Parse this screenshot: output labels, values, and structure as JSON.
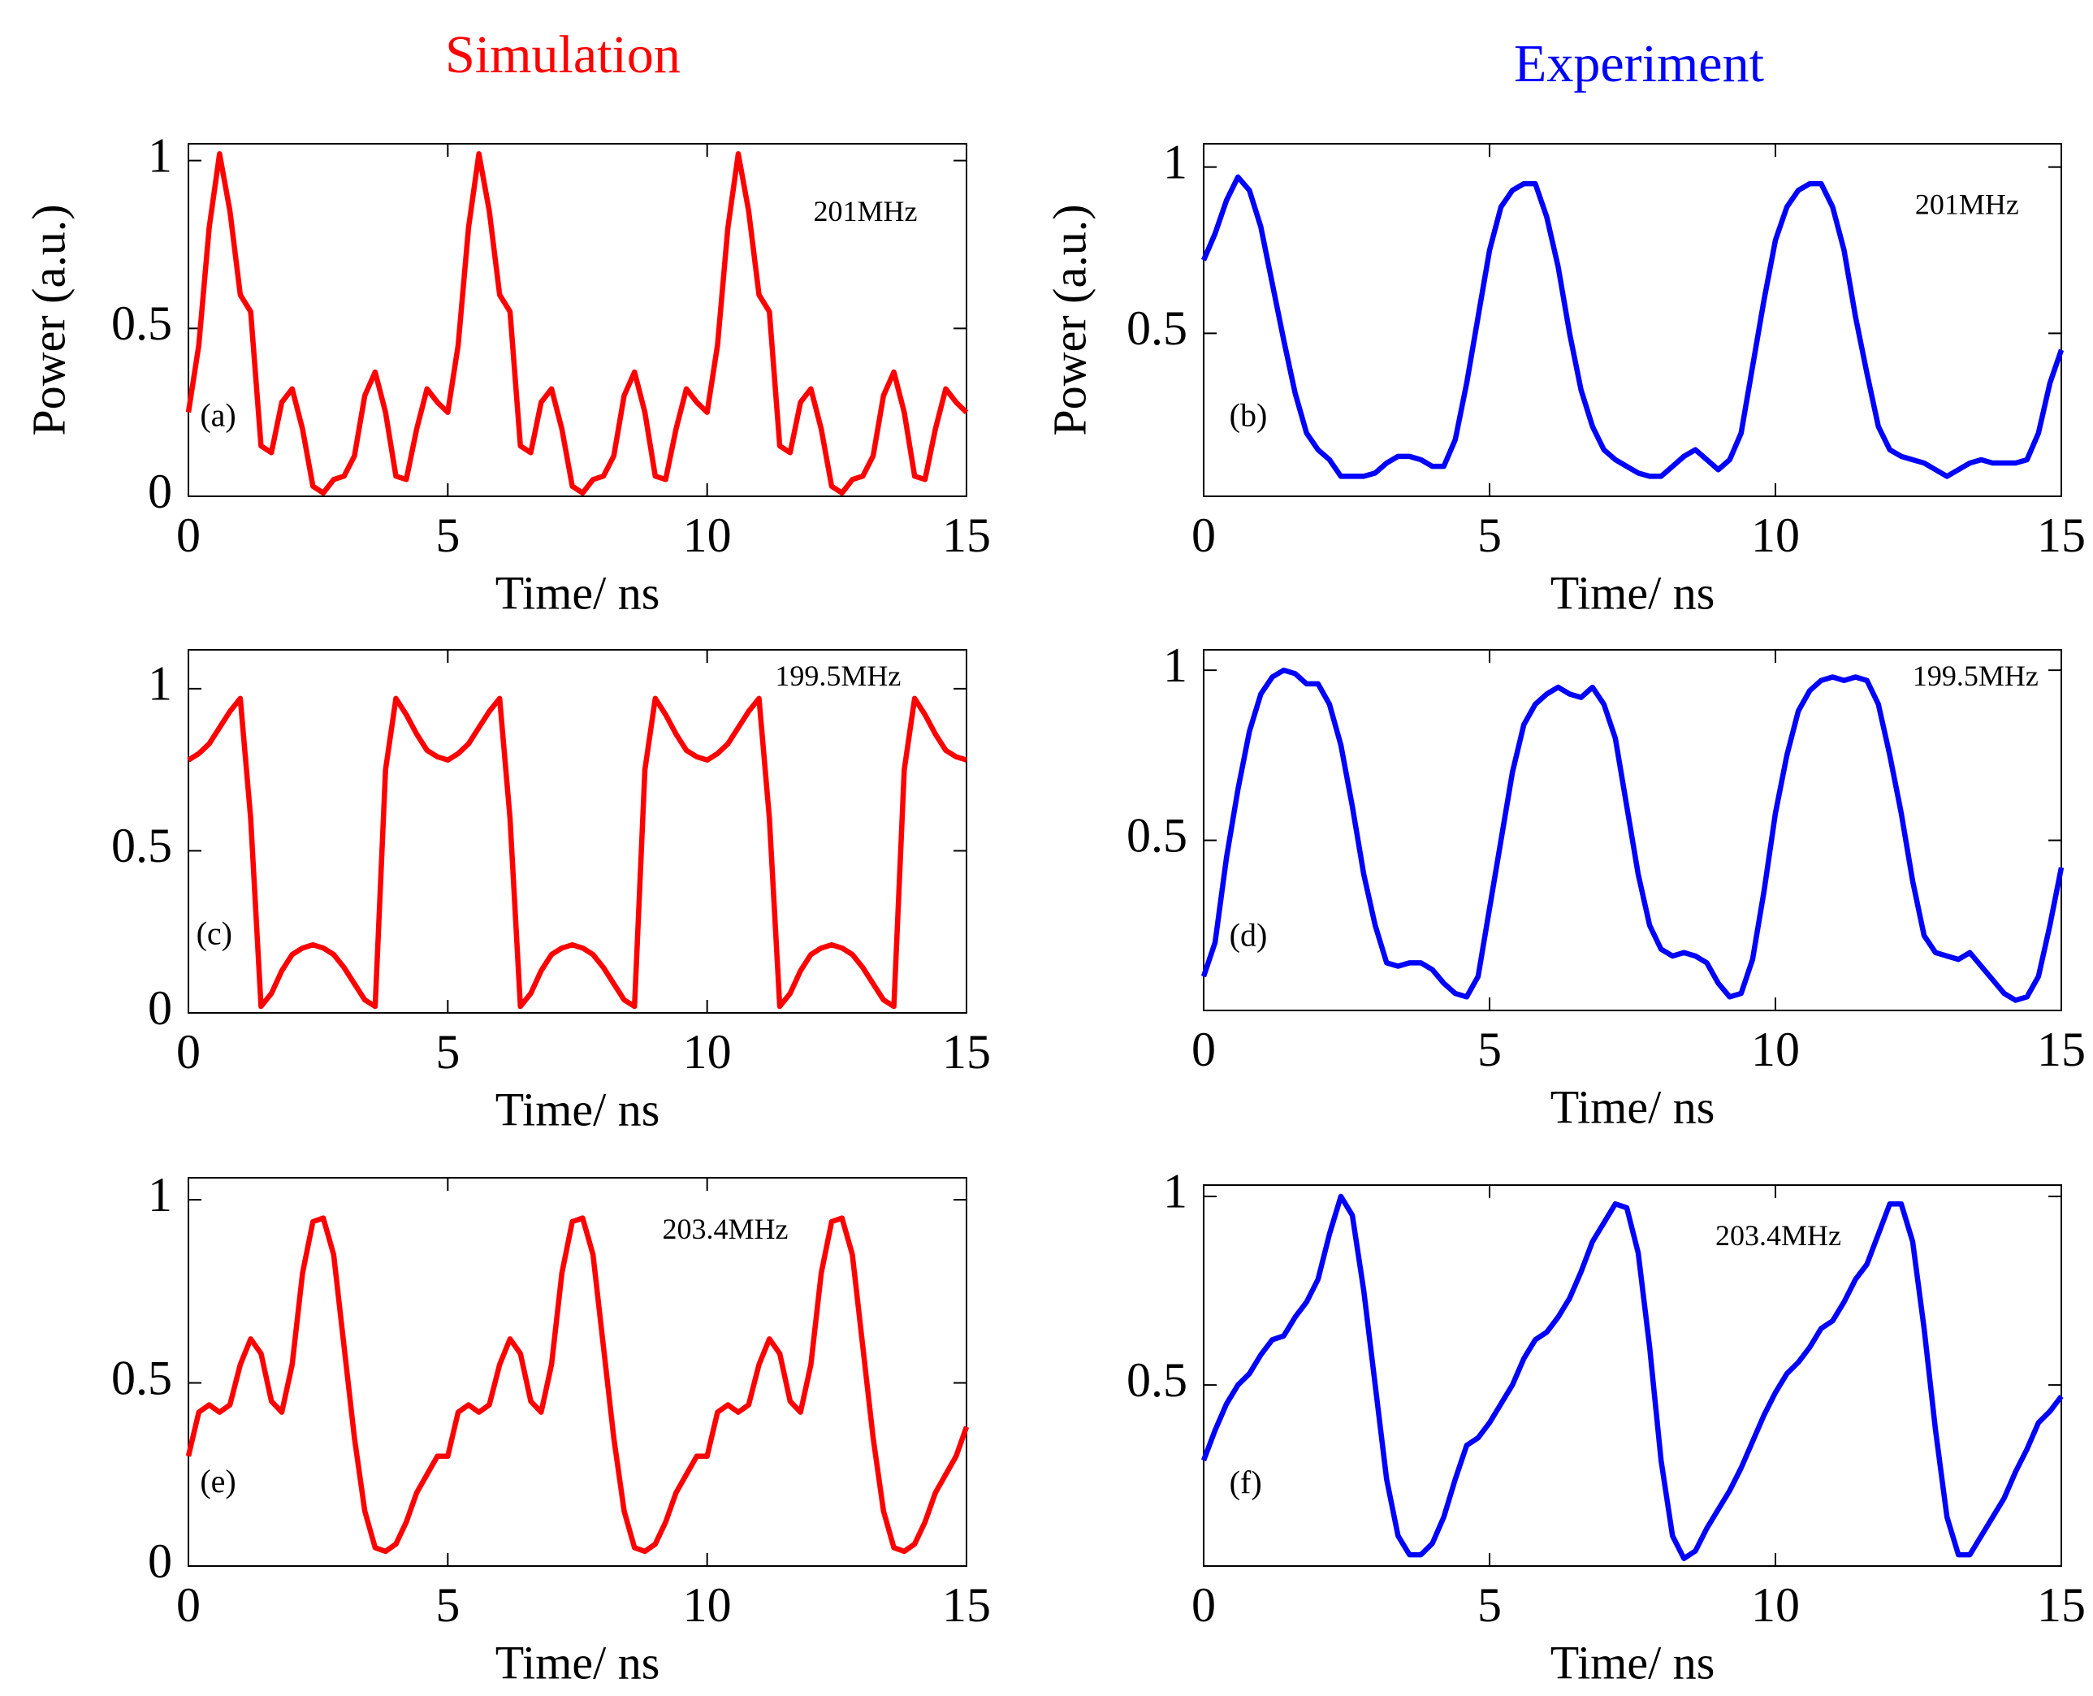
{
  "chart_data": [
    {
      "type": "line",
      "title": "Simulation",
      "xlabel": "Time/ ns",
      "ylabel": "Power (a.u.)",
      "annotations": [
        "(a)",
        "201MHz"
      ],
      "color": "#ff0000",
      "x": [
        0,
        0.2,
        0.4,
        0.6,
        0.8,
        1,
        1.2,
        1.4,
        1.6,
        1.8,
        2,
        2.2,
        2.4,
        2.6,
        2.8,
        3,
        3.2,
        3.4,
        3.6,
        3.8,
        4,
        4.2,
        4.4,
        4.6,
        4.8,
        5,
        5.2,
        5.4,
        5.6,
        5.8,
        6,
        6.2,
        6.4,
        6.6,
        6.8,
        7,
        7.2,
        7.4,
        7.6,
        7.8,
        8,
        8.2,
        8.4,
        8.6,
        8.8,
        9,
        9.2,
        9.4,
        9.6,
        9.8,
        10,
        10.2,
        10.4,
        10.6,
        10.8,
        11,
        11.2,
        11.4,
        11.6,
        11.8,
        12,
        12.2,
        12.4,
        12.6,
        12.8,
        13,
        13.2,
        13.4,
        13.6,
        13.8,
        14,
        14.2,
        14.4,
        14.6,
        14.8,
        15
      ],
      "values": [
        0.25,
        0.45,
        0.8,
        1.02,
        0.85,
        0.6,
        0.55,
        0.15,
        0.13,
        0.28,
        0.32,
        0.2,
        0.03,
        0.01,
        0.05,
        0.06,
        0.12,
        0.3,
        0.37,
        0.25,
        0.06,
        0.05,
        0.2,
        0.32,
        0.28,
        0.25,
        0.45,
        0.8,
        1.02,
        0.85,
        0.6,
        0.55,
        0.15,
        0.13,
        0.28,
        0.32,
        0.2,
        0.03,
        0.01,
        0.05,
        0.06,
        0.12,
        0.3,
        0.37,
        0.25,
        0.06,
        0.05,
        0.2,
        0.32,
        0.28,
        0.25,
        0.45,
        0.8,
        1.02,
        0.85,
        0.6,
        0.55,
        0.15,
        0.13,
        0.28,
        0.32,
        0.2,
        0.03,
        0.01,
        0.05,
        0.06,
        0.12,
        0.3,
        0.37,
        0.25,
        0.06,
        0.05,
        0.2,
        0.32,
        0.28,
        0.25
      ],
      "xlim": [
        0,
        15
      ],
      "ylim": [
        0,
        1.05
      ],
      "xticks": [
        0,
        5,
        10,
        15
      ],
      "yticks": [
        0,
        0.5,
        1
      ]
    },
    {
      "type": "line",
      "title": "Experiment",
      "xlabel": "Time/ ns",
      "ylabel": "Power (a.u.)",
      "annotations": [
        "(b)",
        "201MHz"
      ],
      "color": "#0000ff",
      "x": [
        0,
        0.2,
        0.4,
        0.6,
        0.8,
        1,
        1.2,
        1.4,
        1.6,
        1.8,
        2,
        2.2,
        2.4,
        2.6,
        2.8,
        3,
        3.2,
        3.4,
        3.6,
        3.8,
        4,
        4.2,
        4.4,
        4.6,
        4.8,
        5,
        5.2,
        5.4,
        5.6,
        5.8,
        6,
        6.2,
        6.4,
        6.6,
        6.8,
        7,
        7.2,
        7.4,
        7.6,
        7.8,
        8,
        8.2,
        8.4,
        8.6,
        8.8,
        9,
        9.2,
        9.4,
        9.6,
        9.8,
        10,
        10.2,
        10.4,
        10.6,
        10.8,
        11,
        11.2,
        11.4,
        11.6,
        11.8,
        12,
        12.2,
        12.4,
        12.6,
        12.8,
        13,
        13.2,
        13.4,
        13.6,
        13.8,
        14,
        14.2,
        14.4,
        14.6,
        14.8,
        15
      ],
      "values": [
        0.72,
        0.8,
        0.9,
        0.97,
        0.93,
        0.82,
        0.65,
        0.48,
        0.32,
        0.2,
        0.15,
        0.12,
        0.07,
        0.07,
        0.07,
        0.08,
        0.11,
        0.13,
        0.13,
        0.12,
        0.1,
        0.1,
        0.18,
        0.35,
        0.55,
        0.75,
        0.88,
        0.93,
        0.95,
        0.95,
        0.85,
        0.7,
        0.5,
        0.33,
        0.22,
        0.15,
        0.12,
        0.1,
        0.08,
        0.07,
        0.07,
        0.1,
        0.13,
        0.15,
        0.12,
        0.09,
        0.12,
        0.2,
        0.4,
        0.6,
        0.78,
        0.88,
        0.93,
        0.95,
        0.95,
        0.88,
        0.75,
        0.55,
        0.38,
        0.22,
        0.15,
        0.13,
        0.12,
        0.11,
        0.09,
        0.07,
        0.09,
        0.11,
        0.12,
        0.11,
        0.11,
        0.11,
        0.12,
        0.2,
        0.35,
        0.45
      ],
      "xlim": [
        0,
        15
      ],
      "ylim": [
        0.01,
        1.07
      ],
      "xticks": [
        0,
        5,
        10,
        15
      ],
      "yticks": [
        0.5,
        1
      ]
    },
    {
      "type": "line",
      "xlabel": "Time/ ns",
      "annotations": [
        "(c)",
        "199.5MHz"
      ],
      "color": "#ff0000",
      "x": [
        0,
        0.2,
        0.4,
        0.6,
        0.8,
        1,
        1.2,
        1.4,
        1.6,
        1.8,
        2,
        2.2,
        2.4,
        2.6,
        2.8,
        3,
        3.2,
        3.4,
        3.6,
        3.8,
        4,
        4.2,
        4.4,
        4.6,
        4.8,
        5,
        5.2,
        5.4,
        5.6,
        5.8,
        6,
        6.2,
        6.4,
        6.6,
        6.8,
        7,
        7.2,
        7.4,
        7.6,
        7.8,
        8,
        8.2,
        8.4,
        8.6,
        8.8,
        9,
        9.2,
        9.4,
        9.6,
        9.8,
        10,
        10.2,
        10.4,
        10.6,
        10.8,
        11,
        11.2,
        11.4,
        11.6,
        11.8,
        12,
        12.2,
        12.4,
        12.6,
        12.8,
        13,
        13.2,
        13.4,
        13.6,
        13.8,
        14,
        14.2,
        14.4,
        14.6,
        14.8,
        15
      ],
      "values": [
        0.78,
        0.8,
        0.83,
        0.88,
        0.93,
        0.97,
        0.6,
        0.02,
        0.06,
        0.13,
        0.18,
        0.2,
        0.21,
        0.2,
        0.18,
        0.14,
        0.09,
        0.04,
        0.02,
        0.75,
        0.97,
        0.92,
        0.86,
        0.81,
        0.79,
        0.78,
        0.8,
        0.83,
        0.88,
        0.93,
        0.97,
        0.6,
        0.02,
        0.06,
        0.13,
        0.18,
        0.2,
        0.21,
        0.2,
        0.18,
        0.14,
        0.09,
        0.04,
        0.02,
        0.75,
        0.97,
        0.92,
        0.86,
        0.81,
        0.79,
        0.78,
        0.8,
        0.83,
        0.88,
        0.93,
        0.97,
        0.6,
        0.02,
        0.06,
        0.13,
        0.18,
        0.2,
        0.21,
        0.2,
        0.18,
        0.14,
        0.09,
        0.04,
        0.02,
        0.75,
        0.97,
        0.92,
        0.86,
        0.81,
        0.79,
        0.78
      ],
      "xlim": [
        0,
        15
      ],
      "ylim": [
        0,
        1.12
      ],
      "xticks": [
        0,
        5,
        10,
        15
      ],
      "yticks": [
        0,
        0.5,
        1
      ]
    },
    {
      "type": "line",
      "xlabel": "Time/ ns",
      "annotations": [
        "(d)",
        "199.5MHz"
      ],
      "color": "#0000ff",
      "x": [
        0,
        0.2,
        0.4,
        0.6,
        0.8,
        1,
        1.2,
        1.4,
        1.6,
        1.8,
        2,
        2.2,
        2.4,
        2.6,
        2.8,
        3,
        3.2,
        3.4,
        3.6,
        3.8,
        4,
        4.2,
        4.4,
        4.6,
        4.8,
        5,
        5.2,
        5.4,
        5.6,
        5.8,
        6,
        6.2,
        6.4,
        6.6,
        6.8,
        7,
        7.2,
        7.4,
        7.6,
        7.8,
        8,
        8.2,
        8.4,
        8.6,
        8.8,
        9,
        9.2,
        9.4,
        9.6,
        9.8,
        10,
        10.2,
        10.4,
        10.6,
        10.8,
        11,
        11.2,
        11.4,
        11.6,
        11.8,
        12,
        12.2,
        12.4,
        12.6,
        12.8,
        13,
        13.2,
        13.4,
        13.6,
        13.8,
        14,
        14.2,
        14.4,
        14.6,
        14.8,
        15
      ],
      "values": [
        0.1,
        0.2,
        0.45,
        0.65,
        0.82,
        0.93,
        0.98,
        1.0,
        0.99,
        0.96,
        0.96,
        0.9,
        0.78,
        0.6,
        0.4,
        0.25,
        0.14,
        0.13,
        0.14,
        0.14,
        0.12,
        0.08,
        0.05,
        0.04,
        0.1,
        0.3,
        0.5,
        0.7,
        0.84,
        0.9,
        0.93,
        0.95,
        0.93,
        0.92,
        0.95,
        0.9,
        0.8,
        0.6,
        0.4,
        0.25,
        0.18,
        0.16,
        0.17,
        0.16,
        0.14,
        0.08,
        0.04,
        0.05,
        0.15,
        0.35,
        0.58,
        0.75,
        0.88,
        0.94,
        0.97,
        0.98,
        0.97,
        0.98,
        0.97,
        0.9,
        0.75,
        0.58,
        0.38,
        0.22,
        0.17,
        0.16,
        0.15,
        0.17,
        0.13,
        0.09,
        0.05,
        0.03,
        0.04,
        0.1,
        0.25,
        0.42
      ],
      "xlim": [
        0,
        15
      ],
      "ylim": [
        0,
        1.06
      ],
      "xticks": [
        0,
        5,
        10,
        15
      ],
      "yticks": [
        0.5,
        1
      ]
    },
    {
      "type": "line",
      "xlabel": "Time/ ns",
      "annotations": [
        "(e)",
        "203.4MHz"
      ],
      "color": "#ff0000",
      "x": [
        0,
        0.2,
        0.4,
        0.6,
        0.8,
        1,
        1.2,
        1.4,
        1.6,
        1.8,
        2,
        2.2,
        2.4,
        2.6,
        2.8,
        3,
        3.2,
        3.4,
        3.6,
        3.8,
        4,
        4.2,
        4.4,
        4.6,
        4.8,
        5,
        5.2,
        5.4,
        5.6,
        5.8,
        6,
        6.2,
        6.4,
        6.6,
        6.8,
        7,
        7.2,
        7.4,
        7.6,
        7.8,
        8,
        8.2,
        8.4,
        8.6,
        8.8,
        9,
        9.2,
        9.4,
        9.6,
        9.8,
        10,
        10.2,
        10.4,
        10.6,
        10.8,
        11,
        11.2,
        11.4,
        11.6,
        11.8,
        12,
        12.2,
        12.4,
        12.6,
        12.8,
        13,
        13.2,
        13.4,
        13.6,
        13.8,
        14,
        14.2,
        14.4,
        14.6,
        14.8,
        15
      ],
      "values": [
        0.3,
        0.42,
        0.44,
        0.42,
        0.44,
        0.55,
        0.62,
        0.58,
        0.45,
        0.42,
        0.55,
        0.8,
        0.94,
        0.95,
        0.85,
        0.6,
        0.35,
        0.15,
        0.05,
        0.04,
        0.06,
        0.12,
        0.2,
        0.25,
        0.3,
        0.3,
        0.42,
        0.44,
        0.42,
        0.44,
        0.55,
        0.62,
        0.58,
        0.45,
        0.42,
        0.55,
        0.8,
        0.94,
        0.95,
        0.85,
        0.6,
        0.35,
        0.15,
        0.05,
        0.04,
        0.06,
        0.12,
        0.2,
        0.25,
        0.3,
        0.3,
        0.42,
        0.44,
        0.42,
        0.44,
        0.55,
        0.62,
        0.58,
        0.45,
        0.42,
        0.55,
        0.8,
        0.94,
        0.95,
        0.85,
        0.6,
        0.35,
        0.15,
        0.05,
        0.04,
        0.06,
        0.12,
        0.2,
        0.25,
        0.3,
        0.38
      ],
      "xlim": [
        0,
        15
      ],
      "ylim": [
        0,
        1.06
      ],
      "xticks": [
        0,
        5,
        10,
        15
      ],
      "yticks": [
        0,
        0.5,
        1
      ]
    },
    {
      "type": "line",
      "xlabel": "Time/ ns",
      "annotations": [
        "(f)",
        "203.4MHz"
      ],
      "color": "#0000ff",
      "x": [
        0,
        0.2,
        0.4,
        0.6,
        0.8,
        1,
        1.2,
        1.4,
        1.6,
        1.8,
        2,
        2.2,
        2.4,
        2.6,
        2.8,
        3,
        3.2,
        3.4,
        3.6,
        3.8,
        4,
        4.2,
        4.4,
        4.6,
        4.8,
        5,
        5.2,
        5.4,
        5.6,
        5.8,
        6,
        6.2,
        6.4,
        6.6,
        6.8,
        7,
        7.2,
        7.4,
        7.6,
        7.8,
        8,
        8.2,
        8.4,
        8.6,
        8.8,
        9,
        9.2,
        9.4,
        9.6,
        9.8,
        10,
        10.2,
        10.4,
        10.6,
        10.8,
        11,
        11.2,
        11.4,
        11.6,
        11.8,
        12,
        12.2,
        12.4,
        12.6,
        12.8,
        13,
        13.2,
        13.4,
        13.6,
        13.8,
        14,
        14.2,
        14.4,
        14.6,
        14.8,
        15
      ],
      "values": [
        0.3,
        0.38,
        0.45,
        0.5,
        0.53,
        0.58,
        0.62,
        0.63,
        0.68,
        0.72,
        0.78,
        0.9,
        1.0,
        0.95,
        0.75,
        0.5,
        0.25,
        0.1,
        0.05,
        0.05,
        0.08,
        0.15,
        0.25,
        0.34,
        0.36,
        0.4,
        0.45,
        0.5,
        0.57,
        0.62,
        0.64,
        0.68,
        0.73,
        0.8,
        0.88,
        0.93,
        0.98,
        0.97,
        0.85,
        0.6,
        0.3,
        0.1,
        0.04,
        0.06,
        0.12,
        0.17,
        0.22,
        0.28,
        0.35,
        0.42,
        0.48,
        0.53,
        0.56,
        0.6,
        0.65,
        0.67,
        0.72,
        0.78,
        0.82,
        0.9,
        0.98,
        0.98,
        0.88,
        0.65,
        0.38,
        0.15,
        0.05,
        0.05,
        0.1,
        0.15,
        0.2,
        0.27,
        0.33,
        0.4,
        0.43,
        0.47
      ],
      "xlim": [
        0,
        15
      ],
      "ylim": [
        0.02,
        1.03
      ],
      "xticks": [
        0,
        5,
        10,
        15
      ],
      "yticks": [
        0.5,
        1
      ]
    }
  ]
}
